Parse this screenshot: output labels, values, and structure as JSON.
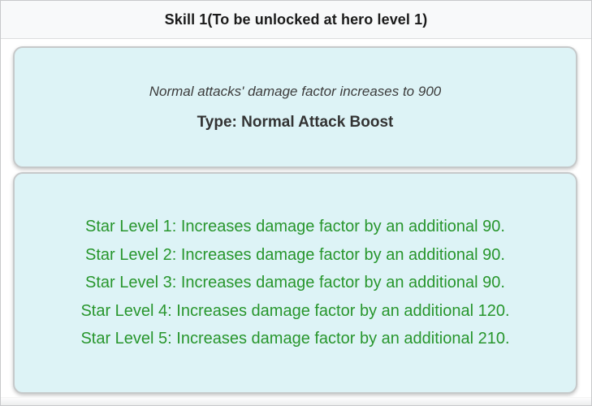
{
  "header": {
    "title": "Skill 1(To be unlocked at hero level 1)"
  },
  "skill_info": {
    "description": "Normal attacks' damage factor increases to 900",
    "type_label": "Type: Normal Attack Boost"
  },
  "star_levels": [
    "Star Level 1: Increases damage factor by an additional 90.",
    "Star Level 2: Increases damage factor by an additional 90.",
    "Star Level 3: Increases damage factor by an additional 90.",
    "Star Level 4: Increases damage factor by an additional 120.",
    "Star Level 5: Increases damage factor by an additional 210."
  ],
  "colors": {
    "header_bg": "#f8f9fa",
    "card_bg": "#ddf3f6",
    "card_border": "#c6c9ca",
    "description_text": "#3c3c3c",
    "type_text": "#333333",
    "star_text": "#28962d"
  }
}
